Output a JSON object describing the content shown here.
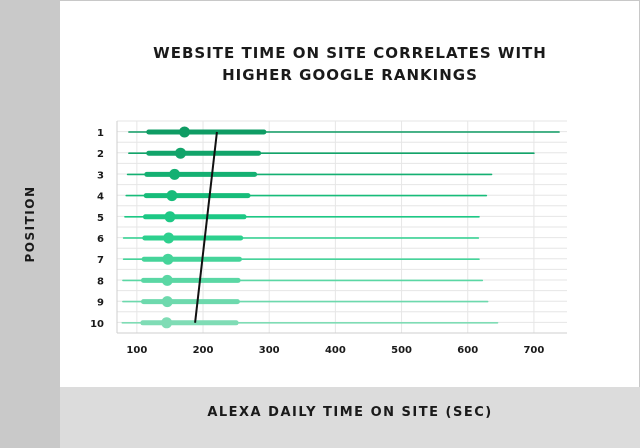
{
  "chart_data": {
    "type": "scatter",
    "title_lines": [
      "WEBSITE TIME ON SITE CORRELATES WITH",
      "HIGHER GOOGLE RANKINGS"
    ],
    "xlabel": "ALEXA DAILY TIME ON SITE (SEC)",
    "ylabel": "POSITION",
    "xlim": [
      70,
      750
    ],
    "x_ticks": [
      100,
      200,
      300,
      400,
      500,
      600,
      700
    ],
    "positions": [
      "1",
      "2",
      "3",
      "4",
      "5",
      "6",
      "7",
      "8",
      "9",
      "10"
    ],
    "rows": [
      {
        "position": "1",
        "min": 88,
        "q1": 118,
        "median": 172,
        "q3": 292,
        "max": 738,
        "color": "#0f9c64"
      },
      {
        "position": "2",
        "min": 88,
        "q1": 118,
        "median": 166,
        "q3": 284,
        "max": 700,
        "color": "#12a46a"
      },
      {
        "position": "3",
        "min": 86,
        "q1": 115,
        "median": 157,
        "q3": 278,
        "max": 636,
        "color": "#14b072"
      },
      {
        "position": "4",
        "min": 84,
        "q1": 114,
        "median": 153,
        "q3": 268,
        "max": 628,
        "color": "#17bc7a"
      },
      {
        "position": "5",
        "min": 82,
        "q1": 113,
        "median": 150,
        "q3": 262,
        "max": 617,
        "color": "#1dc885"
      },
      {
        "position": "6",
        "min": 80,
        "q1": 112,
        "median": 148,
        "q3": 257,
        "max": 616,
        "color": "#2dd08e"
      },
      {
        "position": "7",
        "min": 80,
        "q1": 111,
        "median": 147,
        "q3": 255,
        "max": 617,
        "color": "#45d49a"
      },
      {
        "position": "8",
        "min": 79,
        "q1": 110,
        "median": 146,
        "q3": 253,
        "max": 622,
        "color": "#5ad7a4"
      },
      {
        "position": "9",
        "min": 79,
        "q1": 110,
        "median": 146,
        "q3": 252,
        "max": 630,
        "color": "#6dd9ad"
      },
      {
        "position": "10",
        "min": 78,
        "q1": 109,
        "median": 145,
        "q3": 250,
        "max": 645,
        "color": "#7fdcb5"
      }
    ],
    "trend_line": {
      "from": {
        "position": "1",
        "x": 221
      },
      "to": {
        "position": "10",
        "x": 188
      },
      "color": "#111111"
    },
    "grid": true
  }
}
